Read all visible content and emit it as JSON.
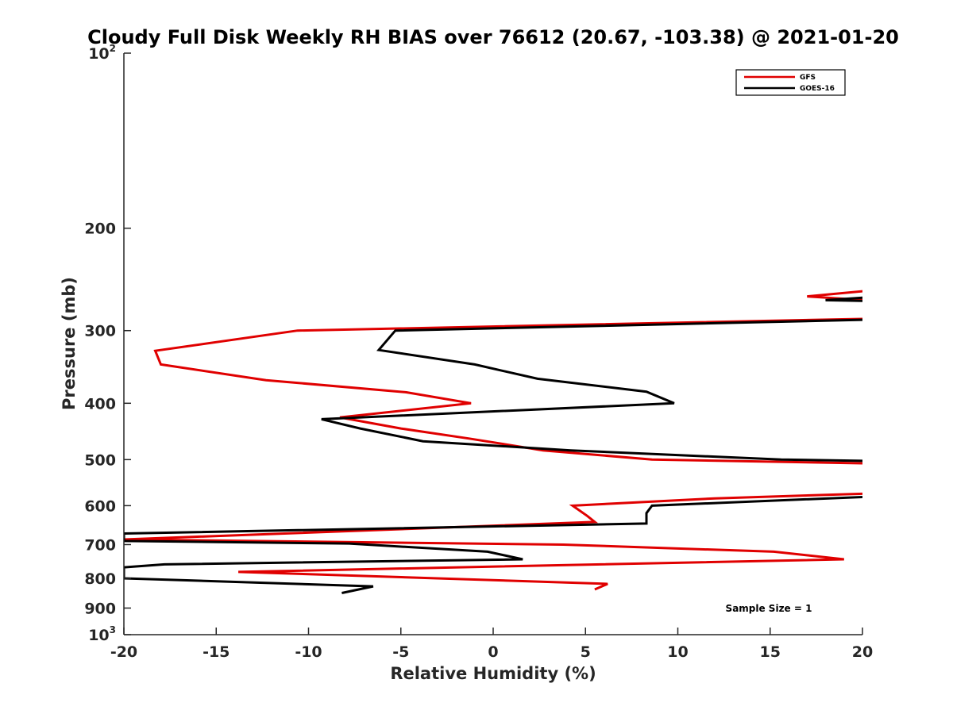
{
  "chart_data": {
    "type": "line",
    "title": "Cloudy Full Disk Weekly RH BIAS over 76612 (20.67, -103.38) @ 2021-01-20",
    "xlabel": "Relative Humidity (%)",
    "ylabel": "Pressure (mb)",
    "xlim": [
      -20,
      20
    ],
    "ylim": [
      100,
      1000
    ],
    "yscale": "log",
    "y_reversed": true,
    "grid": false,
    "legend_position": "top-right",
    "x_ticks": [
      "-20",
      "-15",
      "-10",
      "-5",
      "0",
      "5",
      "10",
      "15",
      "20"
    ],
    "y_ticks": [
      {
        "value": 100,
        "base": "10",
        "exp": "2"
      },
      {
        "value": 200,
        "label": "200"
      },
      {
        "value": 300,
        "label": "300"
      },
      {
        "value": 400,
        "label": "400"
      },
      {
        "value": 500,
        "label": "500"
      },
      {
        "value": 600,
        "label": "600"
      },
      {
        "value": 700,
        "label": "700"
      },
      {
        "value": 800,
        "label": "800"
      },
      {
        "value": 900,
        "label": "900"
      },
      {
        "value": 1000,
        "base": "10",
        "exp": "3"
      }
    ],
    "annotation": "Sample Size = 1",
    "series": [
      {
        "name": "GFS",
        "color": "#e00000",
        "points": [
          [
            21,
            267
          ],
          [
            17,
            262
          ],
          [
            21,
            255
          ],
          [
            21,
            286
          ],
          [
            -10.6,
            300
          ],
          [
            -18.3,
            325
          ],
          [
            -18,
            343
          ],
          [
            -12.3,
            365
          ],
          [
            -4.7,
            383
          ],
          [
            -1.2,
            400
          ],
          [
            -8.3,
            423
          ],
          [
            -5,
            442
          ],
          [
            -1.3,
            460
          ],
          [
            2.7,
            482
          ],
          [
            8.6,
            500
          ],
          [
            21,
            508
          ],
          [
            21,
            571
          ],
          [
            12,
            583
          ],
          [
            4.3,
            600
          ],
          [
            5.1,
            625
          ],
          [
            5.5,
            640
          ],
          [
            -20,
            686
          ],
          [
            3.8,
            700
          ],
          [
            15.2,
            720
          ],
          [
            19,
            742
          ],
          [
            -13.8,
            780
          ],
          [
            6.2,
            818
          ],
          [
            5.5,
            836
          ]
        ]
      },
      {
        "name": "GOES-16",
        "color": "#000000",
        "points": [
          [
            21,
            267
          ],
          [
            18,
            266
          ],
          [
            21,
            262
          ],
          [
            21,
            287
          ],
          [
            -5.3,
            300
          ],
          [
            -6.2,
            324
          ],
          [
            -1,
            343
          ],
          [
            2.4,
            363
          ],
          [
            8.3,
            382
          ],
          [
            9.8,
            400
          ],
          [
            -9.3,
            426
          ],
          [
            -7.2,
            442
          ],
          [
            -3.8,
            465
          ],
          [
            4.2,
            482
          ],
          [
            15.6,
            500
          ],
          [
            21,
            503
          ],
          [
            21,
            578
          ],
          [
            8.6,
            600
          ],
          [
            8.3,
            618
          ],
          [
            8.3,
            644
          ],
          [
            -20,
            670
          ],
          [
            -20,
            690
          ],
          [
            -7.8,
            697
          ],
          [
            -0.3,
            720
          ],
          [
            1.6,
            742
          ],
          [
            -17.8,
            757
          ],
          [
            -20,
            766
          ],
          [
            -20,
            800
          ],
          [
            -6.5,
            826
          ],
          [
            -8.2,
            848
          ]
        ]
      }
    ]
  }
}
